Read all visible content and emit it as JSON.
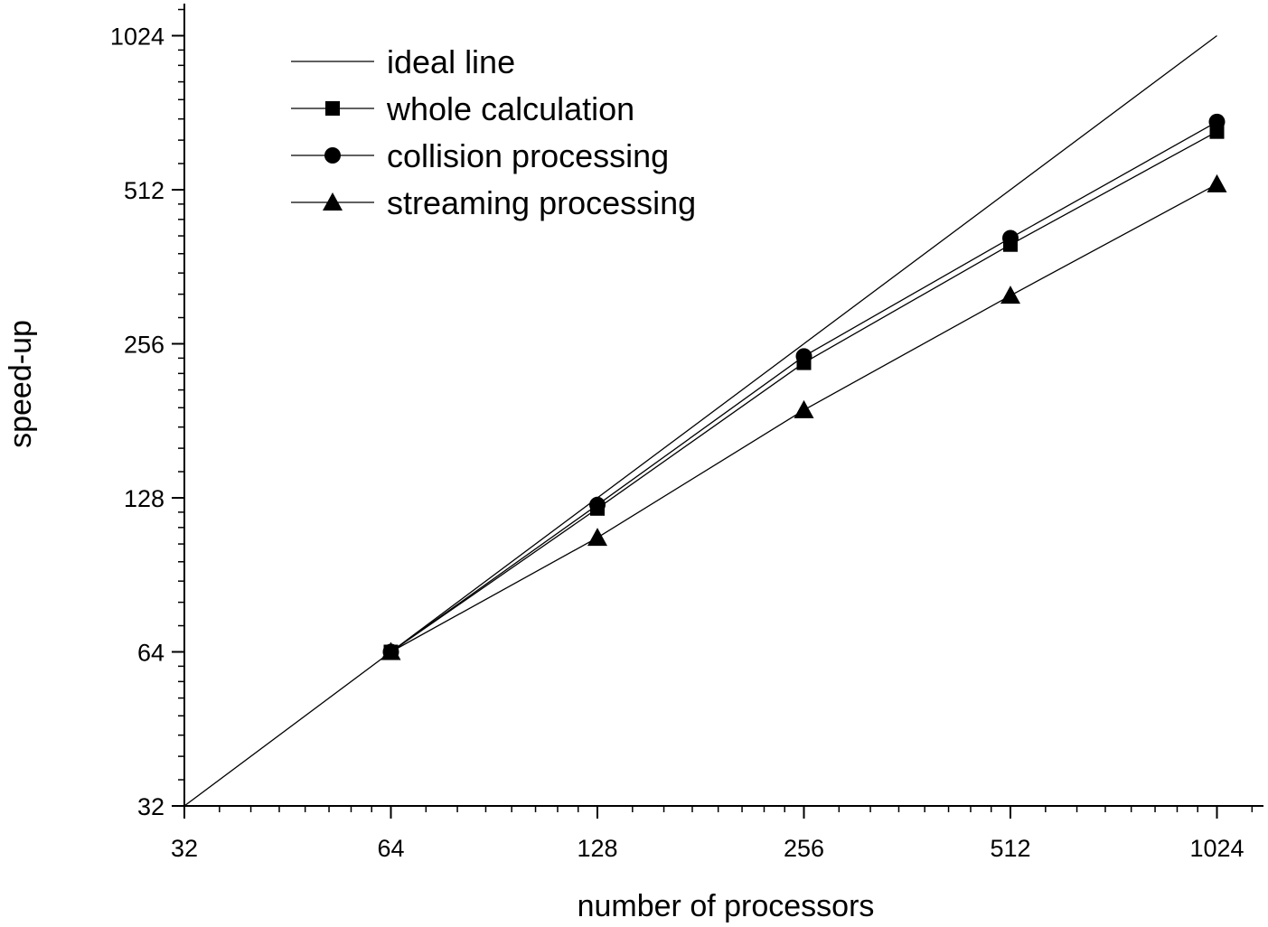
{
  "chart_data": {
    "type": "line",
    "xlabel": "number of processors",
    "ylabel": "speed-up",
    "xscale": "log2",
    "yscale": "log2",
    "xlim": [
      32,
      1200
    ],
    "ylim": [
      32,
      1200
    ],
    "xticks": [
      "32",
      "64",
      "128",
      "256",
      "512",
      "1024"
    ],
    "yticks": [
      "32",
      "64",
      "128",
      "256",
      "512",
      "1024"
    ],
    "x": [
      64,
      128,
      256,
      512,
      1024
    ],
    "series": [
      {
        "name": "ideal line",
        "marker": "none",
        "x": [
          32,
          1024
        ],
        "values": [
          32,
          1024
        ]
      },
      {
        "name": "whole calculation",
        "marker": "square",
        "values": [
          64,
          122,
          235,
          400,
          665
        ]
      },
      {
        "name": "collision processing",
        "marker": "circle",
        "values": [
          64,
          124,
          242,
          412,
          695
        ]
      },
      {
        "name": "streaming processing",
        "marker": "triangle",
        "values": [
          64,
          107,
          190,
          318,
          525
        ]
      }
    ],
    "legend_position": "top-left",
    "grid": false
  }
}
